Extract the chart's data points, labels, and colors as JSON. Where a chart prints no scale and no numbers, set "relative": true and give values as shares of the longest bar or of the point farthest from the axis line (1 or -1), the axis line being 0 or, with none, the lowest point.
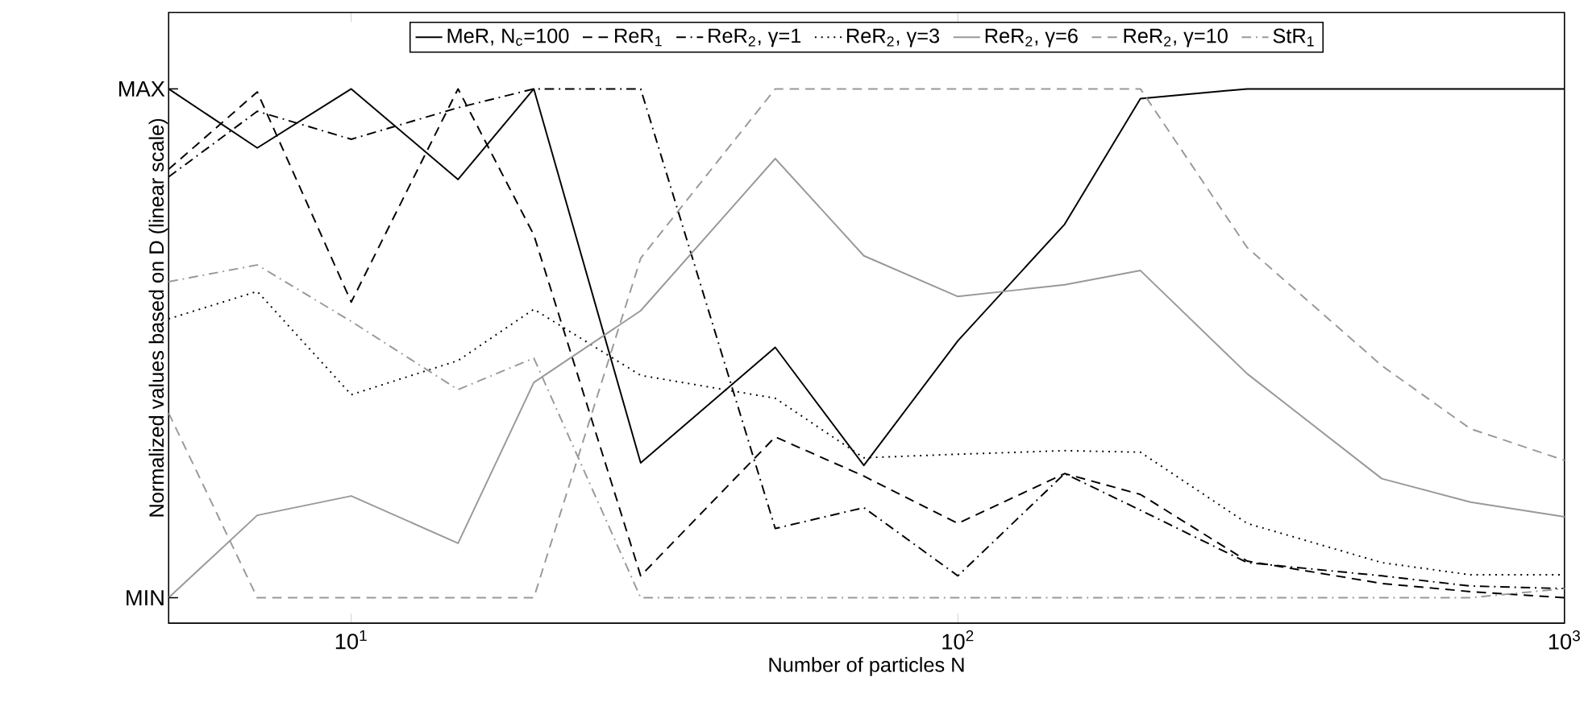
{
  "chart_data": {
    "type": "line",
    "xlabel": "Number of particles N",
    "ylabel": "Normalized values based on D (linear scale)",
    "x": [
      5,
      7,
      10,
      15,
      20,
      30,
      50,
      70,
      100,
      150,
      200,
      300,
      500,
      700,
      1000
    ],
    "series": [
      {
        "name": "MeR, N$_{c}$=100",
        "color": "#000000",
        "line_style": "solid",
        "values": [
          1.0,
          0.884,
          1.0,
          0.822,
          1.0,
          0.265,
          0.492,
          0.26,
          0.505,
          0.734,
          0.981,
          1.0,
          1.0,
          1.0,
          1.0
        ]
      },
      {
        "name": "ReR$_{1}$",
        "color": "#000000",
        "line_style": "dashed",
        "values": [
          0.842,
          0.994,
          0.581,
          1.0,
          0.713,
          0.043,
          0.316,
          0.239,
          0.146,
          0.244,
          0.203,
          0.072,
          0.028,
          0.012,
          0.0
        ]
      },
      {
        "name": "ReR$_{2}$, γ=1",
        "color": "#000000",
        "line_style": "dashdot",
        "values": [
          0.827,
          0.956,
          0.901,
          0.963,
          1.0,
          1.0,
          0.136,
          0.177,
          0.043,
          0.244,
          0.172,
          0.069,
          0.043,
          0.023,
          0.018
        ]
      },
      {
        "name": "ReR$_{2}$, γ=3",
        "color": "#000000",
        "line_style": "dotted",
        "values": [
          0.548,
          0.602,
          0.399,
          0.466,
          0.567,
          0.437,
          0.392,
          0.275,
          0.282,
          0.289,
          0.286,
          0.146,
          0.069,
          0.045,
          0.045
        ]
      },
      {
        "name": "ReR$_{2}$, γ=6",
        "color": "#999999",
        "line_style": "solid",
        "values": [
          0.0,
          0.162,
          0.2,
          0.107,
          0.423,
          0.564,
          0.863,
          0.672,
          0.592,
          0.615,
          0.643,
          0.44,
          0.234,
          0.188,
          0.159
        ]
      },
      {
        "name": "ReR$_{2}$, γ=10",
        "color": "#999999",
        "line_style": "dashed",
        "values": [
          0.363,
          0.0,
          0.0,
          0.0,
          0.0,
          0.667,
          1.0,
          1.0,
          1.0,
          1.0,
          1.0,
          0.688,
          0.456,
          0.332,
          0.27
        ]
      },
      {
        "name": "StR$_{1}$",
        "color": "#999999",
        "line_style": "dashdot",
        "values": [
          0.621,
          0.654,
          0.543,
          0.409,
          0.471,
          0.0,
          0.0,
          0.0,
          0.0,
          0.0,
          0.0,
          0.0,
          0.0,
          0.0,
          0.018
        ]
      }
    ],
    "log": "x",
    "xlim": [
      5,
      1000
    ],
    "relative": true,
    "annotations": [
      "MIN",
      "MAX"
    ],
    "xticks": [
      {
        "value": 10,
        "label": "10$^{1}$"
      },
      {
        "value": 100,
        "label": "10$^{2}$"
      },
      {
        "value": 1000,
        "label": "10$^{3}$"
      }
    ],
    "grid": false,
    "legend": "top",
    "marker": "none"
  }
}
